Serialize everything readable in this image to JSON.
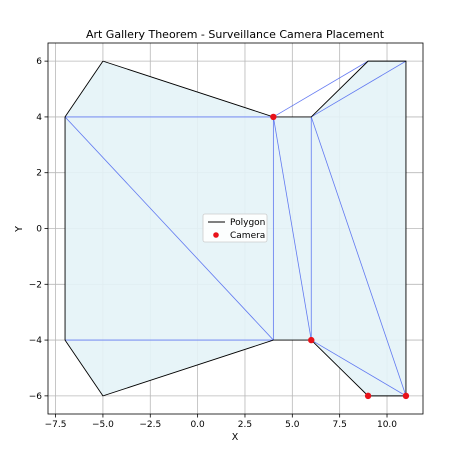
{
  "chart_data": {
    "type": "line",
    "title": "Art Gallery Theorem - Surveillance Camera Placement",
    "xlabel": "X",
    "ylabel": "Y",
    "xlim": [
      -7.9,
      11.9
    ],
    "ylim": [
      -6.65,
      6.65
    ],
    "xticks": [
      -7.5,
      -5.0,
      -2.5,
      0.0,
      2.5,
      5.0,
      7.5,
      10.0
    ],
    "xtick_labels": [
      "−7.5",
      "−5.0",
      "−2.5",
      "0.0",
      "2.5",
      "5.0",
      "7.5",
      "10.0"
    ],
    "yticks": [
      -6,
      -4,
      -2,
      0,
      2,
      4,
      6
    ],
    "ytick_labels": [
      "−6",
      "−4",
      "−2",
      "0",
      "2",
      "4",
      "6"
    ],
    "grid": true,
    "legend_position": "center",
    "colors": {
      "fill": "#e4f3f7",
      "polygon": "#000000",
      "triangulation": "#4a64f0",
      "camera": "#e8121a",
      "grid": "#b8b8b8"
    },
    "polygon": {
      "name": "Polygon",
      "x": [
        -5,
        4,
        6,
        9,
        11,
        11,
        9,
        6,
        4,
        -5,
        -7,
        -7,
        -5
      ],
      "y": [
        6,
        4,
        4,
        6,
        6,
        -6,
        -6,
        -4,
        -4,
        -6,
        -4,
        4,
        6
      ]
    },
    "triangulation_edges": [
      [
        [
          -7,
          4
        ],
        [
          4,
          4
        ]
      ],
      [
        [
          -7,
          4
        ],
        [
          4,
          -4
        ]
      ],
      [
        [
          -7,
          -4
        ],
        [
          4,
          -4
        ]
      ],
      [
        [
          4,
          4
        ],
        [
          4,
          -4
        ]
      ],
      [
        [
          6,
          4
        ],
        [
          6,
          -4
        ]
      ],
      [
        [
          4,
          4
        ],
        [
          6,
          -4
        ]
      ],
      [
        [
          6,
          4
        ],
        [
          11,
          6
        ]
      ],
      [
        [
          4,
          4
        ],
        [
          9,
          6
        ]
      ],
      [
        [
          6,
          4
        ],
        [
          11,
          -6
        ]
      ],
      [
        [
          6,
          -4
        ],
        [
          11,
          -6
        ]
      ]
    ],
    "cameras": {
      "name": "Camera",
      "points": [
        [
          4,
          4
        ],
        [
          6,
          -4
        ],
        [
          9,
          -6
        ],
        [
          11,
          -6
        ]
      ]
    }
  }
}
